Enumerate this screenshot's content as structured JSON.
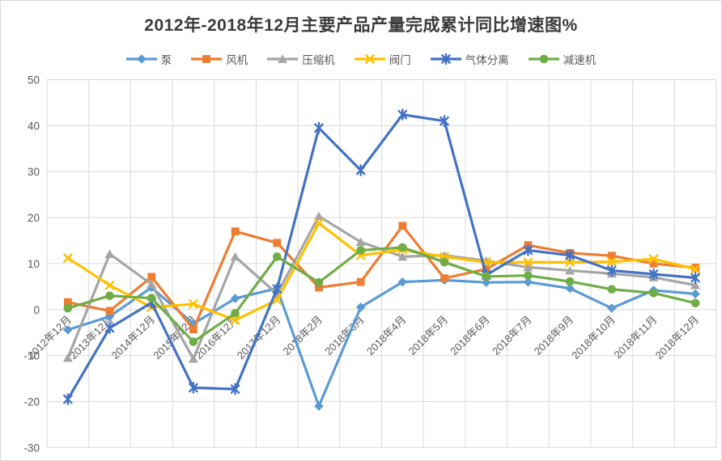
{
  "title": "2012年-2018年12月主要产品产量完成累计同比增速图%",
  "chart_data": {
    "type": "line",
    "title": "2012年-2018年12月主要产品产量完成累计同比增速图%",
    "categories": [
      "2012年12月",
      "2013年12月",
      "2014年12月",
      "2015年12月",
      "2016年12月",
      "2017年12月",
      "2018年2月",
      "2018年3月",
      "2018年4月",
      "2018年5月",
      "2018年6月",
      "2018年7月",
      "2018年9月",
      "2018年10月",
      "2018年11月",
      "2018年12月"
    ],
    "series": [
      {
        "name": "泵",
        "marker": "diamond",
        "color": "#5B9BD5",
        "values": [
          -4.4,
          -1.5,
          4.8,
          -3.1,
          2.4,
          4.6,
          -21.0,
          0.5,
          6.0,
          6.4,
          5.9,
          6.0,
          4.6,
          0.3,
          4.2,
          3.4
        ]
      },
      {
        "name": "风机",
        "marker": "square",
        "color": "#ED7D31",
        "values": [
          1.6,
          -0.3,
          7.1,
          -4.3,
          17.0,
          14.5,
          4.8,
          6.0,
          18.2,
          6.8,
          8.8,
          14.0,
          12.3,
          11.7,
          10.0,
          9.1
        ]
      },
      {
        "name": "压缩机",
        "marker": "triangle",
        "color": "#A5A5A5",
        "values": [
          -10.5,
          12.1,
          5.5,
          -10.7,
          11.5,
          3.4,
          20.3,
          14.7,
          11.5,
          11.8,
          10.6,
          9.2,
          8.5,
          7.8,
          7.0,
          5.3
        ]
      },
      {
        "name": "阀门",
        "marker": "x",
        "color": "#FFC000",
        "values": [
          11.2,
          5.3,
          0.5,
          1.2,
          -2.3,
          2.1,
          18.8,
          11.8,
          13.0,
          11.5,
          10.3,
          10.3,
          10.3,
          10.4,
          11.0,
          8.8
        ]
      },
      {
        "name": "气体分离",
        "marker": "star",
        "color": "#4472C4",
        "values": [
          -19.5,
          -4.0,
          1.5,
          -17.0,
          -17.3,
          4.5,
          39.5,
          30.3,
          42.4,
          41.0,
          7.5,
          12.9,
          11.8,
          8.5,
          7.7,
          6.9
        ]
      },
      {
        "name": "减速机",
        "marker": "circle",
        "color": "#70AD47",
        "values": [
          0.3,
          3.0,
          2.5,
          -7.0,
          -0.8,
          11.5,
          5.9,
          12.9,
          13.5,
          10.3,
          7.2,
          7.4,
          6.1,
          4.4,
          3.6,
          1.4
        ]
      }
    ],
    "ylim": [
      -30,
      50
    ],
    "y_tick_step": 10,
    "y_tick_labels": [
      "-30",
      "-20",
      "-10",
      "0",
      "10",
      "20",
      "30",
      "40",
      "50"
    ],
    "xlabel": "",
    "ylabel": "",
    "grid": true,
    "legend_position": "top",
    "colors": {
      "gridline": "#D9D9D9",
      "axis_text": "#595959",
      "title_text": "#3A3A3A",
      "background": "#FFFFFF"
    }
  }
}
